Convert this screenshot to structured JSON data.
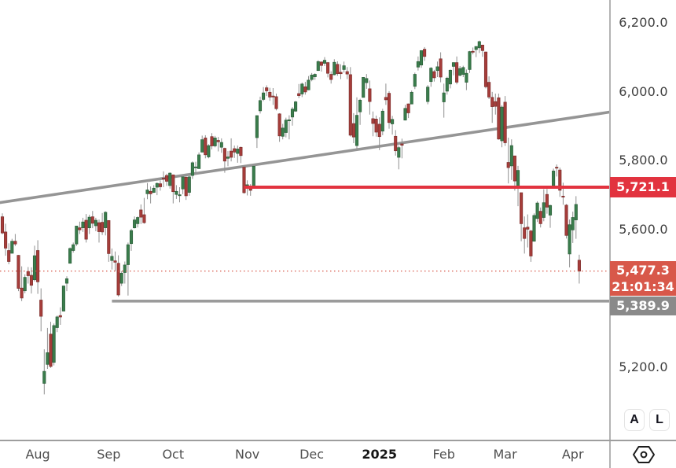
{
  "chart_data": {
    "type": "candlestick",
    "grid": false,
    "ylim": [
      4985,
      6265
    ],
    "bar_spacing": 4.1,
    "first_x": 3,
    "y_ticks": [
      {
        "text": "6,200.0",
        "price": 6200
      },
      {
        "text": "6,000.0",
        "price": 6000
      },
      {
        "text": "5,800.0",
        "price": 5800
      },
      {
        "text": "5,600.0",
        "price": 5600
      },
      {
        "text": "5,200.0",
        "price": 5200
      }
    ],
    "x_ticks": [
      {
        "text": "Aug",
        "index": 11
      },
      {
        "text": "Sep",
        "index": 33
      },
      {
        "text": "Oct",
        "index": 53
      },
      {
        "text": "Nov",
        "index": 76
      },
      {
        "text": "Dec",
        "index": 96
      },
      {
        "text": "2025",
        "index": 117,
        "bold": true
      },
      {
        "text": "Feb",
        "index": 137
      },
      {
        "text": "Mar",
        "index": 156
      },
      {
        "text": "Apr",
        "index": 177
      }
    ],
    "colors": {
      "up": "#3a7d4c",
      "up_border": "#2d5f3a",
      "down": "#a63d3a",
      "down_border": "#7d2e2c",
      "wick": "#909090",
      "trendline": "#8c8c8c",
      "resistance": "#e2333f",
      "support": "#9b9b9b",
      "last_price": "#d8584a"
    },
    "overlays": {
      "trendline": {
        "type": "ascending-trendline",
        "from_index": -1,
        "from_price": 5676,
        "to_index": 189,
        "to_price": 5940
      },
      "resistance_ray": {
        "price": 5721.1,
        "start_index": 75,
        "label": "5,721.1"
      },
      "support_ray": {
        "price": 5389.9,
        "start_index": 34,
        "label": "5,389.9"
      },
      "last_price_line": {
        "price": 5477.3,
        "style": "dotted",
        "label": "5,477.3",
        "countdown": "21:01:34"
      }
    },
    "dates": [
      "2024-07-17",
      "2024-07-18",
      "2024-07-19",
      "2024-07-22",
      "2024-07-23",
      "2024-07-24",
      "2024-07-25",
      "2024-07-26",
      "2024-07-29",
      "2024-07-30",
      "2024-07-31",
      "2024-08-01",
      "2024-08-02",
      "2024-08-05",
      "2024-08-06",
      "2024-08-07",
      "2024-08-08",
      "2024-08-09",
      "2024-08-12",
      "2024-08-13",
      "2024-08-14",
      "2024-08-15",
      "2024-08-16",
      "2024-08-19",
      "2024-08-20",
      "2024-08-21",
      "2024-08-22",
      "2024-08-23",
      "2024-08-26",
      "2024-08-27",
      "2024-08-28",
      "2024-08-29",
      "2024-08-30",
      "2024-09-03",
      "2024-09-04",
      "2024-09-05",
      "2024-09-06",
      "2024-09-09",
      "2024-09-10",
      "2024-09-11",
      "2024-09-12",
      "2024-09-13",
      "2024-09-16",
      "2024-09-17",
      "2024-09-18",
      "2024-09-19",
      "2024-09-20",
      "2024-09-23",
      "2024-09-24",
      "2024-09-25",
      "2024-09-26",
      "2024-09-27",
      "2024-09-30",
      "2024-10-01",
      "2024-10-02",
      "2024-10-03",
      "2024-10-04",
      "2024-10-07",
      "2024-10-08",
      "2024-10-09",
      "2024-10-10",
      "2024-10-11",
      "2024-10-14",
      "2024-10-15",
      "2024-10-16",
      "2024-10-17",
      "2024-10-18",
      "2024-10-21",
      "2024-10-22",
      "2024-10-23",
      "2024-10-24",
      "2024-10-25",
      "2024-10-28",
      "2024-10-29",
      "2024-10-30",
      "2024-10-31",
      "2024-11-01",
      "2024-11-04",
      "2024-11-05",
      "2024-11-06",
      "2024-11-07",
      "2024-11-08",
      "2024-11-11",
      "2024-11-12",
      "2024-11-13",
      "2024-11-14",
      "2024-11-15",
      "2024-11-18",
      "2024-11-19",
      "2024-11-20",
      "2024-11-21",
      "2024-11-22",
      "2024-11-25",
      "2024-11-26",
      "2024-11-27",
      "2024-11-29",
      "2024-12-02",
      "2024-12-03",
      "2024-12-04",
      "2024-12-05",
      "2024-12-06",
      "2024-12-09",
      "2024-12-10",
      "2024-12-11",
      "2024-12-12",
      "2024-12-13",
      "2024-12-16",
      "2024-12-17",
      "2024-12-18",
      "2024-12-19",
      "2024-12-20",
      "2024-12-23",
      "2024-12-24",
      "2024-12-26",
      "2024-12-27",
      "2024-12-30",
      "2024-12-31",
      "2025-01-02",
      "2025-01-03",
      "2025-01-06",
      "2025-01-07",
      "2025-01-08",
      "2025-01-10",
      "2025-01-13",
      "2025-01-14",
      "2025-01-15",
      "2025-01-16",
      "2025-01-17",
      "2025-01-21",
      "2025-01-22",
      "2025-01-23",
      "2025-01-24",
      "2025-01-27",
      "2025-01-28",
      "2025-01-29",
      "2025-01-30",
      "2025-01-31",
      "2025-02-03",
      "2025-02-04",
      "2025-02-05",
      "2025-02-06",
      "2025-02-07",
      "2025-02-10",
      "2025-02-11",
      "2025-02-12",
      "2025-02-13",
      "2025-02-14",
      "2025-02-18",
      "2025-02-19",
      "2025-02-20",
      "2025-02-21",
      "2025-02-24",
      "2025-02-25",
      "2025-02-26",
      "2025-02-27",
      "2025-02-28",
      "2025-03-03",
      "2025-03-04",
      "2025-03-05",
      "2025-03-06",
      "2025-03-07",
      "2025-03-10",
      "2025-03-11",
      "2025-03-12",
      "2025-03-13",
      "2025-03-14",
      "2025-03-17",
      "2025-03-18",
      "2025-03-19",
      "2025-03-20",
      "2025-03-21",
      "2025-03-24",
      "2025-03-25",
      "2025-03-26",
      "2025-03-27",
      "2025-03-28",
      "2025-03-31",
      "2025-04-01",
      "2025-04-02",
      "2025-04-03"
    ],
    "ohlc": [
      [
        5635,
        5645,
        5584,
        5588
      ],
      [
        5591,
        5615,
        5522,
        5544
      ],
      [
        5537,
        5558,
        5497,
        5505
      ],
      [
        5529,
        5571,
        5529,
        5564
      ],
      [
        5564,
        5585,
        5550,
        5556
      ],
      [
        5523,
        5524,
        5419,
        5427
      ],
      [
        5428,
        5491,
        5390,
        5399
      ],
      [
        5420,
        5468,
        5413,
        5459
      ],
      [
        5476,
        5489,
        5441,
        5464
      ],
      [
        5465,
        5488,
        5412,
        5436
      ],
      [
        5452,
        5551,
        5447,
        5522
      ],
      [
        5537,
        5567,
        5411,
        5446
      ],
      [
        5393,
        5427,
        5302,
        5346
      ],
      [
        5151,
        5250,
        5119,
        5186
      ],
      [
        5206,
        5312,
        5193,
        5240
      ],
      [
        5294,
        5330,
        5196,
        5200
      ],
      [
        5212,
        5325,
        5203,
        5319
      ],
      [
        5313,
        5348,
        5300,
        5344
      ],
      [
        5348,
        5372,
        5321,
        5344
      ],
      [
        5361,
        5435,
        5360,
        5434
      ],
      [
        5442,
        5462,
        5419,
        5455
      ],
      [
        5500,
        5546,
        5499,
        5543
      ],
      [
        5537,
        5560,
        5531,
        5554
      ],
      [
        5556,
        5609,
        5550,
        5608
      ],
      [
        5603,
        5621,
        5585,
        5597
      ],
      [
        5603,
        5632,
        5591,
        5620
      ],
      [
        5625,
        5643,
        5560,
        5570
      ],
      [
        5603,
        5641,
        5585,
        5634
      ],
      [
        5635,
        5652,
        5602,
        5616
      ],
      [
        5609,
        5632,
        5593,
        5625
      ],
      [
        5618,
        5627,
        5560,
        5592
      ],
      [
        5619,
        5646,
        5582,
        5591
      ],
      [
        5603,
        5651,
        5581,
        5648
      ],
      [
        5624,
        5625,
        5504,
        5528
      ],
      [
        5508,
        5543,
        5482,
        5520
      ],
      [
        5507,
        5534,
        5477,
        5503
      ],
      [
        5500,
        5523,
        5403,
        5408
      ],
      [
        5442,
        5477,
        5434,
        5471
      ],
      [
        5473,
        5505,
        5441,
        5495
      ],
      [
        5496,
        5560,
        5406,
        5554
      ],
      [
        5557,
        5600,
        5536,
        5595
      ],
      [
        5603,
        5636,
        5601,
        5626
      ],
      [
        5615,
        5636,
        5604,
        5633
      ],
      [
        5655,
        5671,
        5614,
        5634
      ],
      [
        5641,
        5690,
        5615,
        5618
      ],
      [
        5702,
        5733,
        5686,
        5713
      ],
      [
        5709,
        5723,
        5674,
        5702
      ],
      [
        5706,
        5727,
        5704,
        5718
      ],
      [
        5721,
        5735,
        5698,
        5732
      ],
      [
        5731,
        5741,
        5711,
        5722
      ],
      [
        5747,
        5767,
        5721,
        5745
      ],
      [
        5755,
        5760,
        5725,
        5738
      ],
      [
        5726,
        5764,
        5717,
        5762
      ],
      [
        5757,
        5757,
        5674,
        5708
      ],
      [
        5700,
        5727,
        5687,
        5709
      ],
      [
        5697,
        5721,
        5677,
        5699
      ],
      [
        5716,
        5753,
        5701,
        5751
      ],
      [
        5750,
        5757,
        5684,
        5696
      ],
      [
        5706,
        5757,
        5696,
        5751
      ],
      [
        5755,
        5796,
        5745,
        5792
      ],
      [
        5779,
        5795,
        5764,
        5780
      ],
      [
        5775,
        5822,
        5775,
        5815
      ],
      [
        5823,
        5871,
        5823,
        5859
      ],
      [
        5864,
        5872,
        5805,
        5815
      ],
      [
        5809,
        5846,
        5805,
        5842
      ],
      [
        5868,
        5878,
        5831,
        5841
      ],
      [
        5841,
        5870,
        5837,
        5864
      ],
      [
        5857,
        5867,
        5825,
        5853
      ],
      [
        5837,
        5863,
        5821,
        5851
      ],
      [
        5834,
        5836,
        5763,
        5797
      ],
      [
        5805,
        5826,
        5782,
        5809
      ],
      [
        5826,
        5863,
        5796,
        5808
      ],
      [
        5833,
        5842,
        5806,
        5823
      ],
      [
        5819,
        5842,
        5792,
        5832
      ],
      [
        5837,
        5839,
        5791,
        5813
      ],
      [
        5779,
        5782,
        5702,
        5705
      ],
      [
        5726,
        5741,
        5697,
        5728
      ],
      [
        5719,
        5730,
        5696,
        5712
      ],
      [
        5723,
        5783,
        5722,
        5782
      ],
      [
        5865,
        5930,
        5835,
        5929
      ],
      [
        5943,
        5984,
        5935,
        5973
      ],
      [
        5976,
        6012,
        5971,
        5995
      ],
      [
        6010,
        6017,
        5986,
        6001
      ],
      [
        5997,
        6010,
        5972,
        5983
      ],
      [
        5986,
        6009,
        5960,
        5985
      ],
      [
        5984,
        5993,
        5944,
        5949
      ],
      [
        5934,
        5936,
        5853,
        5870
      ],
      [
        5869,
        5905,
        5860,
        5893
      ],
      [
        5880,
        5923,
        5866,
        5916
      ],
      [
        5914,
        5930,
        5860,
        5917
      ],
      [
        5925,
        5954,
        5900,
        5948
      ],
      [
        5942,
        5972,
        5940,
        5969
      ],
      [
        5993,
        6021,
        5980,
        5987
      ],
      [
        5992,
        6025,
        5983,
        6021
      ],
      [
        6013,
        6027,
        5990,
        5998
      ],
      [
        6004,
        6044,
        6003,
        6032
      ],
      [
        6034,
        6053,
        6029,
        6047
      ],
      [
        6042,
        6052,
        6033,
        6049
      ],
      [
        6060,
        6090,
        6059,
        6086
      ],
      [
        6085,
        6086,
        6057,
        6075
      ],
      [
        6081,
        6099,
        6073,
        6090
      ],
      [
        6083,
        6085,
        6040,
        6052
      ],
      [
        6049,
        6058,
        6022,
        6034
      ],
      [
        6048,
        6093,
        6046,
        6084
      ],
      [
        6078,
        6087,
        6045,
        6051
      ],
      [
        6055,
        6078,
        6035,
        6051
      ],
      [
        6063,
        6086,
        6054,
        6074
      ],
      [
        6057,
        6070,
        6035,
        6050
      ],
      [
        6048,
        6070,
        5868,
        5872
      ],
      [
        5906,
        5936,
        5849,
        5867
      ],
      [
        5842,
        5982,
        5832,
        5930
      ],
      [
        5940,
        5978,
        5902,
        5974
      ],
      [
        5982,
        6041,
        5982,
        6040
      ],
      [
        6025,
        6050,
        6007,
        6037
      ],
      [
        6007,
        6031,
        5932,
        5970
      ],
      [
        5920,
        5941,
        5869,
        5906
      ],
      [
        5919,
        5929,
        5868,
        5881
      ],
      [
        5904,
        5924,
        5829,
        5868
      ],
      [
        5884,
        5949,
        5872,
        5942
      ],
      [
        5982,
        6022,
        5960,
        5975
      ],
      [
        5994,
        6000,
        5891,
        5909
      ],
      [
        5905,
        5928,
        5874,
        5918
      ],
      [
        5869,
        5887,
        5813,
        5827
      ],
      [
        5808,
        5842,
        5773,
        5836
      ],
      [
        5847,
        5862,
        5805,
        5843
      ],
      [
        5916,
        5960,
        5915,
        5950
      ],
      [
        5963,
        5964,
        5922,
        5937
      ],
      [
        5963,
        6002,
        5963,
        5997
      ],
      [
        6014,
        6054,
        6006,
        6049
      ],
      [
        6070,
        6101,
        6060,
        6086
      ],
      [
        6076,
        6118,
        6068,
        6118
      ],
      [
        6122,
        6128,
        6088,
        6101
      ],
      [
        5970,
        6018,
        5962,
        6012
      ],
      [
        6028,
        6070,
        6013,
        6067
      ],
      [
        6057,
        6062,
        6028,
        6039
      ],
      [
        6060,
        6086,
        6041,
        6071
      ],
      [
        6094,
        6113,
        6026,
        6041
      ],
      [
        5969,
        6022,
        5923,
        5995
      ],
      [
        6000,
        6042,
        5990,
        6038
      ],
      [
        6021,
        6063,
        6008,
        6061
      ],
      [
        6072,
        6084,
        6046,
        6083
      ],
      [
        6083,
        6101,
        6020,
        6026
      ],
      [
        6046,
        6073,
        6044,
        6066
      ],
      [
        6049,
        6074,
        6041,
        6069
      ],
      [
        6026,
        6063,
        6003,
        6052
      ],
      [
        6063,
        6117,
        6053,
        6115
      ],
      [
        6116,
        6127,
        6107,
        6115
      ],
      [
        6121,
        6130,
        6099,
        6130
      ],
      [
        6126,
        6147,
        6111,
        6144
      ],
      [
        6134,
        6135,
        6100,
        6118
      ],
      [
        6114,
        6115,
        6008,
        6013
      ],
      [
        6026,
        6043,
        5977,
        5983
      ],
      [
        5982,
        5998,
        5908,
        5955
      ],
      [
        5970,
        5993,
        5932,
        5956
      ],
      [
        5981,
        5993,
        5859,
        5861
      ],
      [
        5856,
        5959,
        5837,
        5954
      ],
      [
        5968,
        5986,
        5841,
        5850
      ],
      [
        5793,
        5865,
        5732,
        5778
      ],
      [
        5783,
        5860,
        5742,
        5842
      ],
      [
        5812,
        5812,
        5711,
        5739
      ],
      [
        5719,
        5783,
        5666,
        5770
      ],
      [
        5705,
        5705,
        5564,
        5615
      ],
      [
        5603,
        5636,
        5528,
        5572
      ],
      [
        5605,
        5642,
        5546,
        5599
      ],
      [
        5594,
        5597,
        5504,
        5521
      ],
      [
        5564,
        5645,
        5563,
        5639
      ],
      [
        5630,
        5680,
        5620,
        5675
      ],
      [
        5651,
        5662,
        5604,
        5615
      ],
      [
        5633,
        5715,
        5622,
        5676
      ],
      [
        5700,
        5716,
        5644,
        5663
      ],
      [
        5640,
        5670,
        5603,
        5668
      ],
      [
        5719,
        5775,
        5718,
        5768
      ],
      [
        5779,
        5787,
        5752,
        5777
      ],
      [
        5771,
        5778,
        5693,
        5712
      ],
      [
        5695,
        5734,
        5670,
        5693
      ],
      [
        5669,
        5672,
        5572,
        5581
      ],
      [
        5527,
        5627,
        5488,
        5612
      ],
      [
        5597,
        5650,
        5559,
        5633
      ],
      [
        5626,
        5695,
        5571,
        5671
      ],
      [
        5509,
        5525,
        5441,
        5477.3
      ]
    ]
  },
  "price_axis": {
    "level_badge": {
      "text": "5,721.1",
      "color": "#e2333f",
      "price": 5721.1
    },
    "last_badge": {
      "price_text": "5,477.3",
      "countdown": "21:01:34",
      "color": "#d8584a",
      "price": 5477.3
    },
    "support_badge": {
      "text": "5,389.9",
      "color": "#8a8a8a",
      "price": 5389.9
    },
    "auto_label": "A",
    "log_label": "L"
  },
  "time_axis": {
    "year_label": "2025"
  },
  "icons": {
    "bottom_right": "hexagon-dot-icon"
  }
}
